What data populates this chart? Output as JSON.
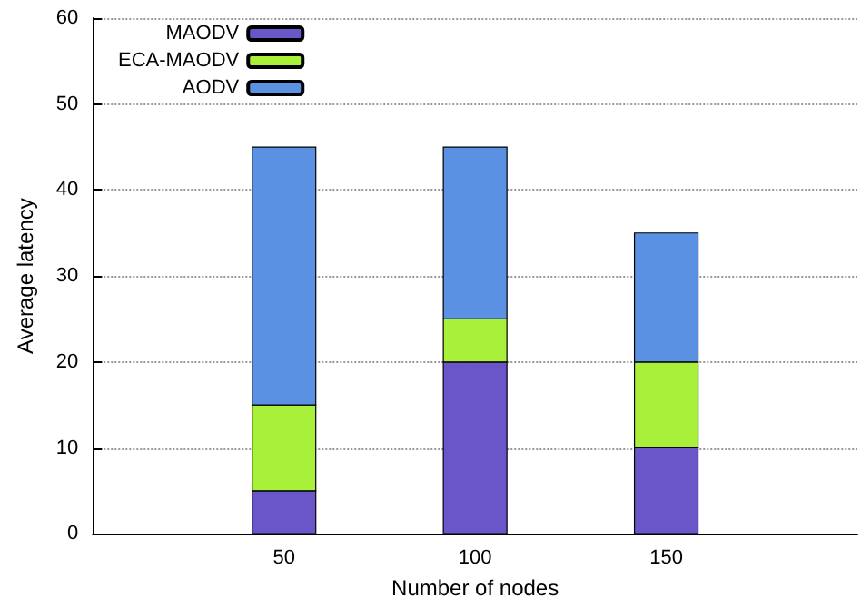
{
  "chart_data": {
    "type": "bar",
    "stacked": true,
    "xlabel": "Number of nodes",
    "ylabel": "Average latency",
    "x": [
      50,
      100,
      150
    ],
    "xlim": [
      0,
      200
    ],
    "xticks": [
      50,
      100,
      150
    ],
    "ylim": [
      0,
      60
    ],
    "yticks": [
      0,
      10,
      20,
      30,
      40,
      50,
      60
    ],
    "grid": "y",
    "legend": "top left",
    "series": [
      {
        "name": "MAODV",
        "color": "#6a55c9",
        "values": [
          5,
          20,
          10
        ]
      },
      {
        "name": "ECA-MAODV",
        "color": "#a9f03a",
        "values": [
          10,
          5,
          10
        ]
      },
      {
        "name": "AODV",
        "color": "#5b91e3",
        "values": [
          30,
          20,
          15
        ]
      }
    ]
  }
}
